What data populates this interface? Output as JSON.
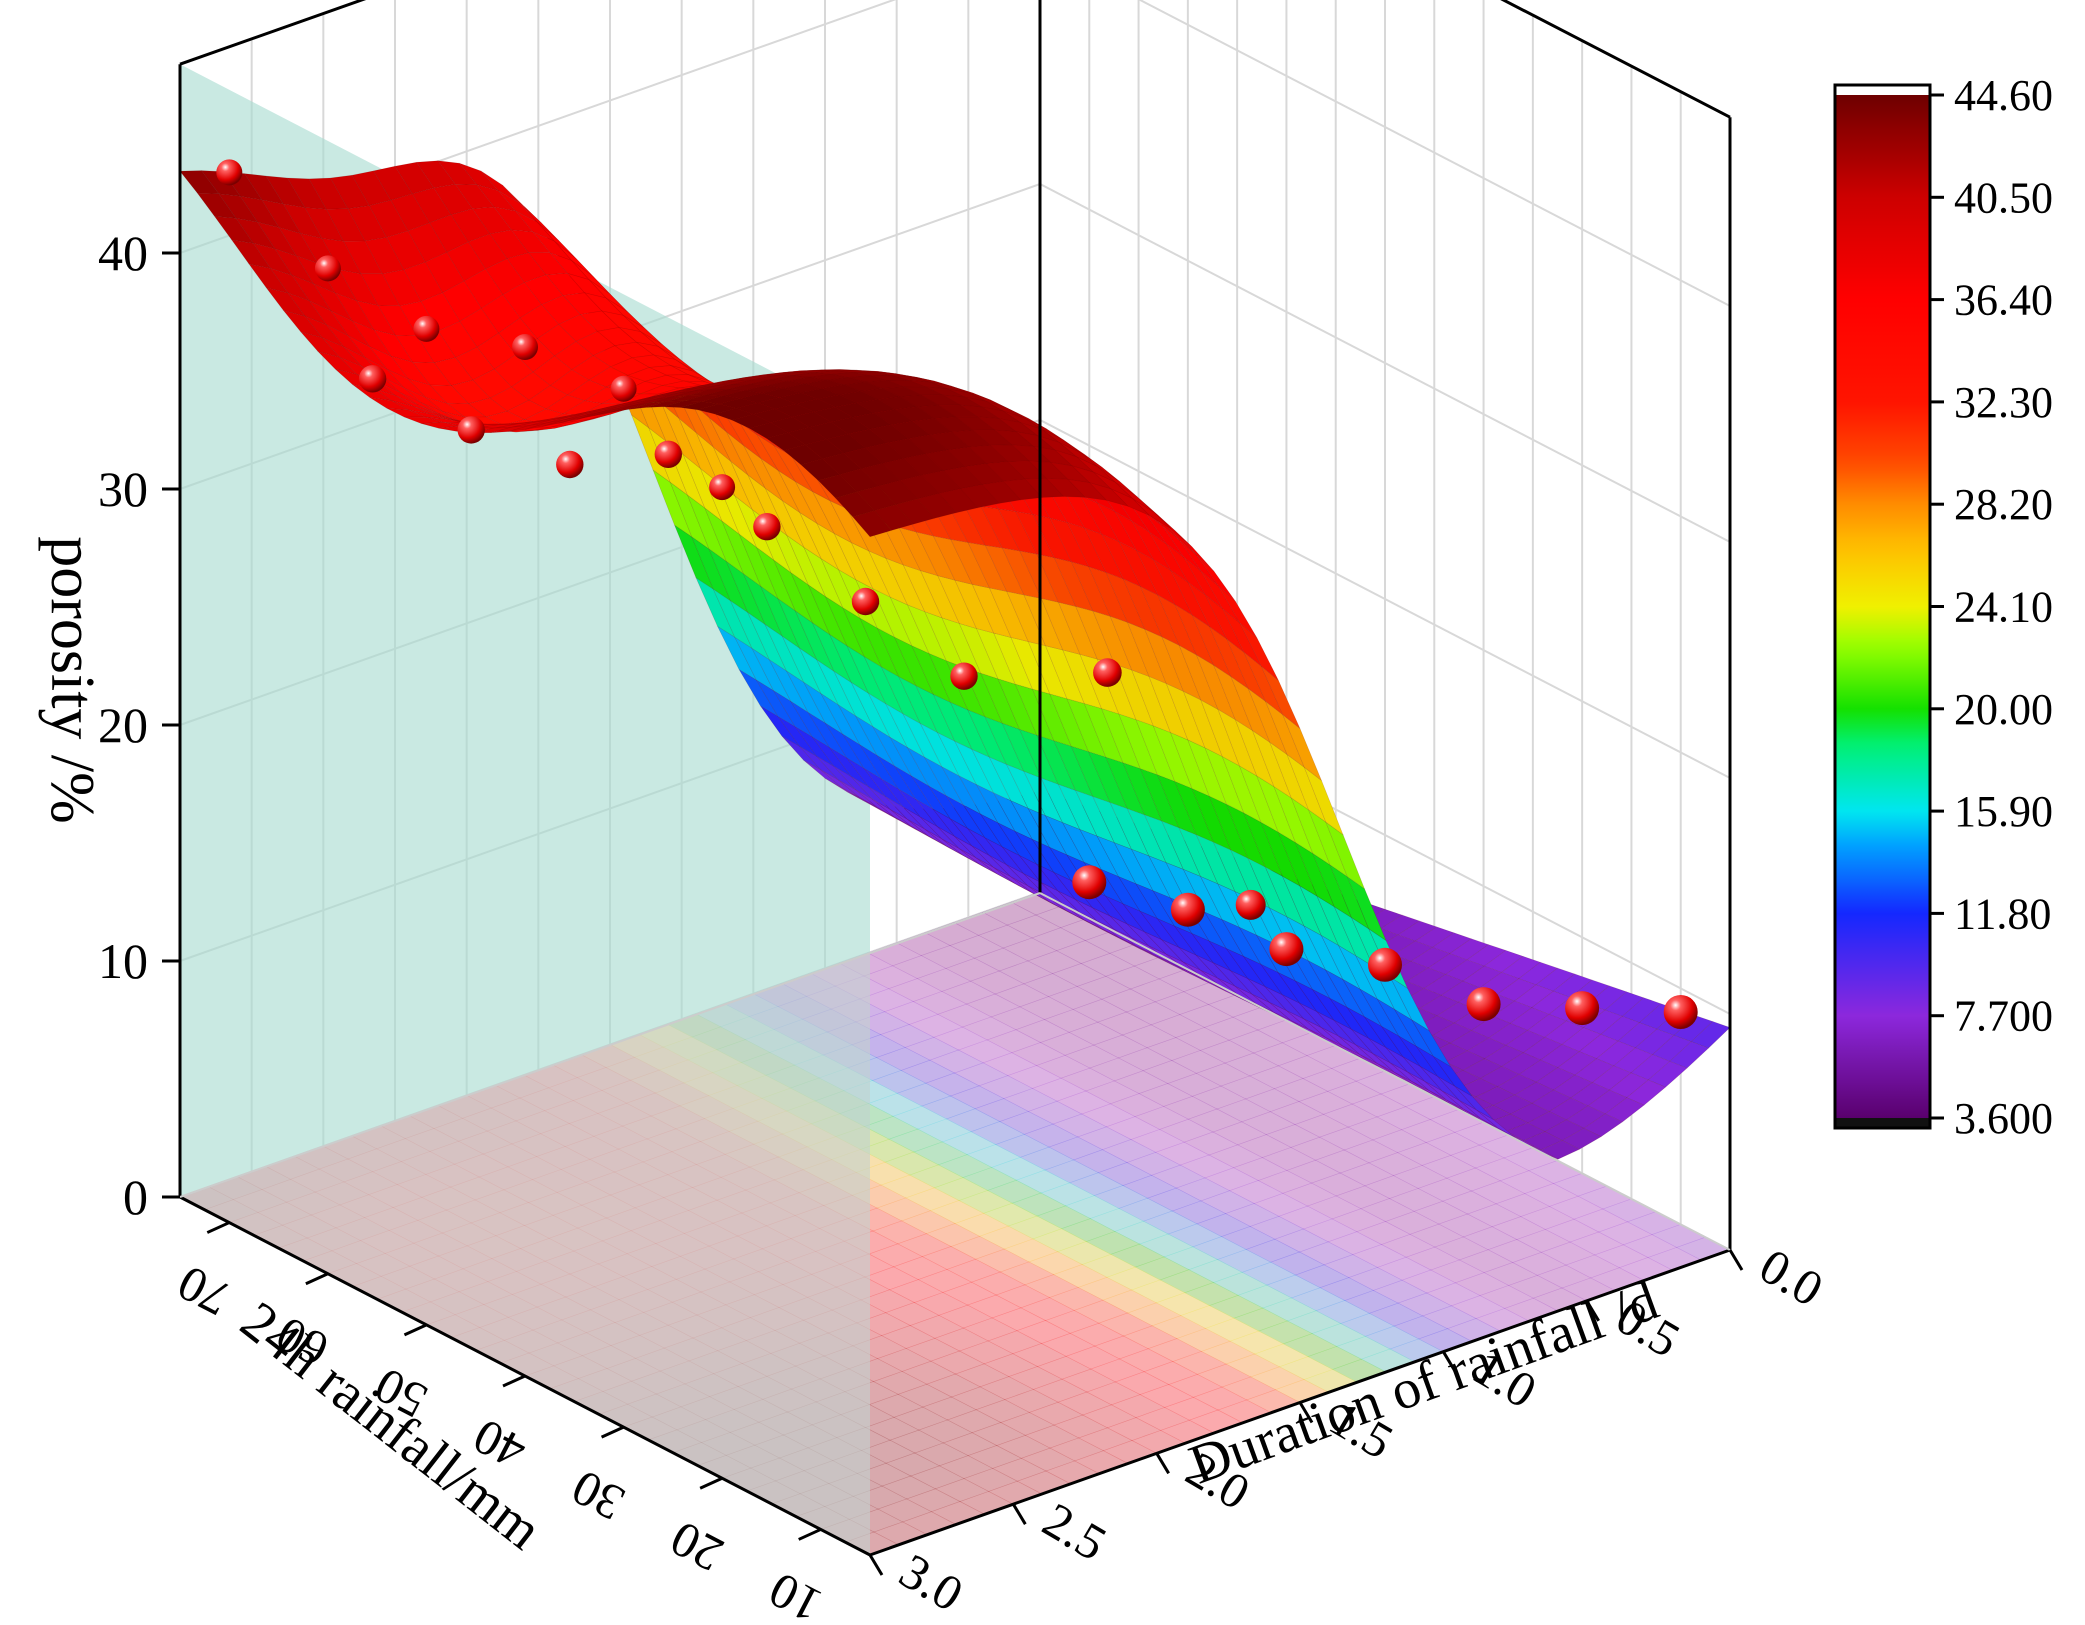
{
  "chart_data": {
    "type": "surface3d",
    "axes": {
      "x": {
        "label": "Duration of rainfall /d",
        "ticks": [
          "0.0",
          "0.5",
          "1.0",
          "1.5",
          "2.0",
          "2.5",
          "3.0"
        ],
        "range": [
          0,
          3
        ]
      },
      "y": {
        "label": "24h rainfall/mm",
        "ticks": [
          "10",
          "20",
          "30",
          "40",
          "50",
          "60",
          "70"
        ],
        "range": [
          5,
          75
        ]
      },
      "z": {
        "label": "porosity /%",
        "ticks": [
          "0",
          "10",
          "20",
          "30",
          "40"
        ],
        "range": [
          0,
          44
        ]
      }
    },
    "colorbar": {
      "ticks": [
        "44.60",
        "40.50",
        "36.40",
        "32.30",
        "28.20",
        "24.10",
        "20.00",
        "15.90",
        "11.80",
        "7.700",
        "3.600"
      ],
      "min": 3.6,
      "max": 44.6,
      "colors": [
        "#6a007a",
        "#8a2be2",
        "#3a3aff",
        "#0090ff",
        "#00e0ff",
        "#00ff90",
        "#20e000",
        "#b8ff00",
        "#ffee00",
        "#ffb000",
        "#ff6a00",
        "#ff2a00",
        "#ff0000",
        "#e00000",
        "#a00000",
        "#6e0000"
      ]
    },
    "grid": true,
    "projection": "contour on floor",
    "scatter_points": [
      {
        "x": 3.0,
        "y": 70,
        "z": 44.5
      },
      {
        "x": 3.0,
        "y": 60,
        "z": 42.6
      },
      {
        "x": 3.0,
        "y": 50,
        "z": 42.2
      },
      {
        "x": 3.0,
        "y": 40,
        "z": 43.6
      },
      {
        "x": 3.0,
        "y": 30,
        "z": 44.0
      },
      {
        "x": 3.0,
        "y": 20,
        "z": 42.0
      },
      {
        "x": 2.5,
        "y": 70,
        "z": 33.6
      },
      {
        "x": 2.5,
        "y": 60,
        "z": 33.6
      },
      {
        "x": 2.5,
        "y": 50,
        "z": 34.3
      },
      {
        "x": 2.5,
        "y": 40,
        "z": 36.9
      },
      {
        "x": 2.5,
        "y": 30,
        "z": 36.0
      },
      {
        "x": 2.5,
        "y": 20,
        "z": 35.0
      },
      {
        "x": 2.5,
        "y": 10,
        "z": 34.0
      },
      {
        "x": 2.0,
        "y": 10,
        "z": 32.0
      },
      {
        "x": 1.5,
        "y": 10,
        "z": 20.0
      },
      {
        "x": 0.0,
        "y": 10,
        "z": 9.0
      },
      {
        "x": 0.0,
        "y": 20,
        "z": 7.0
      },
      {
        "x": 0.0,
        "y": 30,
        "z": 5.0
      },
      {
        "x": 0.0,
        "y": 40,
        "z": 4.5
      },
      {
        "x": 0.0,
        "y": 50,
        "z": 3.0
      },
      {
        "x": 0.0,
        "y": 60,
        "z": 2.5
      },
      {
        "x": 0.0,
        "y": 70,
        "z": 1.5
      }
    ]
  }
}
